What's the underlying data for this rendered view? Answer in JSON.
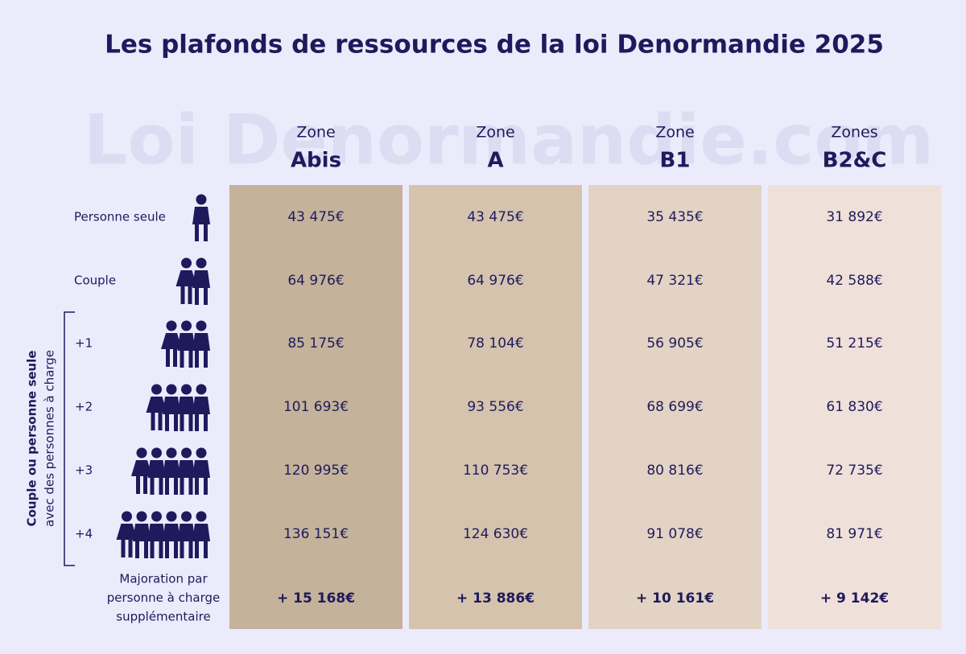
{
  "title": "Les plafonds de ressources de la loi Denormandie 2025",
  "watermark": "Loi Denormandie.com",
  "columns": [
    {
      "prefix": "Zone",
      "name": "Abis"
    },
    {
      "prefix": "Zone",
      "name": "A"
    },
    {
      "prefix": "Zone",
      "name": "B1"
    },
    {
      "prefix": "Zones",
      "name": "B2&C"
    }
  ],
  "group_label": [
    "Couple ou personne seule",
    "avec des personnes à charge"
  ],
  "rows": [
    {
      "label": "Personne seule",
      "values": [
        "43 475€",
        "43 475€",
        "35 435€",
        "31 892€"
      ]
    },
    {
      "label": "Couple",
      "values": [
        "64 976€",
        "64 976€",
        "47 321€",
        "42 588€"
      ]
    },
    {
      "label": "+1",
      "values": [
        "85 175€",
        "78 104€",
        "56 905€",
        "51 215€"
      ]
    },
    {
      "label": "+2",
      "values": [
        "101 693€",
        "93 556€",
        "68 699€",
        "61 830€"
      ]
    },
    {
      "label": "+3",
      "values": [
        "120 995€",
        "110 753€",
        "80 816€",
        "72 735€"
      ]
    },
    {
      "label": "+4",
      "values": [
        "136 151€",
        "124 630€",
        "91 078€",
        "81 971€"
      ]
    }
  ],
  "surcharge": {
    "label": [
      "Majoration par",
      "personne à charge",
      "supplémentaire"
    ],
    "values": [
      "+ 15 168€",
      "+ 13 886€",
      "+ 10 161€",
      "+ 9 142€"
    ]
  }
}
